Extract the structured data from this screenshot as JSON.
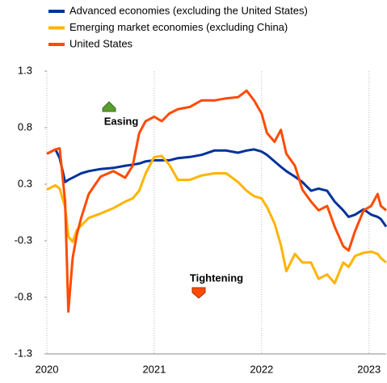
{
  "chart_data": {
    "type": "line",
    "x": [
      2020.0,
      2020.08,
      2020.12,
      2020.17,
      2020.2,
      2020.24,
      2020.28,
      2020.32,
      2020.39,
      2020.5,
      2020.62,
      2020.73,
      2020.8,
      2020.86,
      2020.92,
      2021.0,
      2021.07,
      2021.14,
      2021.22,
      2021.33,
      2021.44,
      2021.56,
      2021.67,
      2021.78,
      2021.86,
      2021.93,
      2022.0,
      2022.05,
      2022.12,
      2022.18,
      2022.23,
      2022.31,
      2022.38,
      2022.46,
      2022.53,
      2022.61,
      2022.68,
      2022.76,
      2022.81,
      2022.87,
      2022.95,
      2023.02,
      2023.08,
      2023.11,
      2023.16
    ],
    "series": [
      {
        "name": "Advanced economies (excluding the United States)",
        "color": "#003299",
        "values": [
          0.54,
          0.58,
          0.5,
          0.28,
          0.3,
          0.32,
          0.34,
          0.36,
          0.38,
          0.4,
          0.41,
          0.43,
          0.44,
          0.45,
          0.47,
          0.48,
          0.48,
          0.48,
          0.5,
          0.51,
          0.53,
          0.57,
          0.57,
          0.55,
          0.57,
          0.58,
          0.56,
          0.53,
          0.47,
          0.42,
          0.38,
          0.33,
          0.28,
          0.2,
          0.22,
          0.2,
          0.1,
          0.02,
          -0.04,
          -0.02,
          0.03,
          -0.02,
          -0.04,
          -0.06,
          -0.13
        ]
      },
      {
        "name": "Emerging market economies (excluding China)",
        "color": "#ffb400",
        "values": [
          0.21,
          0.25,
          0.22,
          0.05,
          -0.22,
          -0.27,
          -0.16,
          -0.12,
          -0.05,
          -0.01,
          0.04,
          0.1,
          0.13,
          0.2,
          0.36,
          0.51,
          0.52,
          0.44,
          0.3,
          0.3,
          0.34,
          0.36,
          0.36,
          0.28,
          0.2,
          0.15,
          0.13,
          0.05,
          -0.1,
          -0.3,
          -0.54,
          -0.38,
          -0.46,
          -0.46,
          -0.61,
          -0.57,
          -0.65,
          -0.46,
          -0.5,
          -0.4,
          -0.37,
          -0.36,
          -0.38,
          -0.42,
          -0.46
        ]
      },
      {
        "name": "United States",
        "color": "#ff4b00",
        "values": [
          0.54,
          0.58,
          0.59,
          0.1,
          -0.91,
          -0.42,
          -0.2,
          -0.05,
          0.17,
          0.33,
          0.38,
          0.32,
          0.43,
          0.73,
          0.84,
          0.88,
          0.84,
          0.91,
          0.95,
          0.97,
          1.03,
          1.03,
          1.05,
          1.06,
          1.12,
          1.03,
          0.91,
          0.73,
          0.65,
          0.76,
          0.54,
          0.43,
          0.21,
          0.1,
          0.02,
          0.06,
          -0.13,
          -0.31,
          -0.35,
          -0.17,
          0.02,
          0.06,
          0.17,
          0.06,
          0.02
        ]
      }
    ],
    "xlim": [
      2020.0,
      2023.16
    ],
    "xticks": [
      2020,
      2021,
      2022,
      2023
    ],
    "ylim": [
      -1.3,
      1.3
    ],
    "yticks": [
      -1.3,
      {
        "value": -0.78,
        "label": "-0.8"
      },
      {
        "value": -0.26,
        "label": "-0.3"
      },
      {
        "value": 0.26,
        "label": "0.3"
      },
      {
        "value": 0.78,
        "label": "0.8"
      },
      1.3
    ],
    "grid": true,
    "annotations": [
      "Easing",
      "Tightening"
    ]
  }
}
